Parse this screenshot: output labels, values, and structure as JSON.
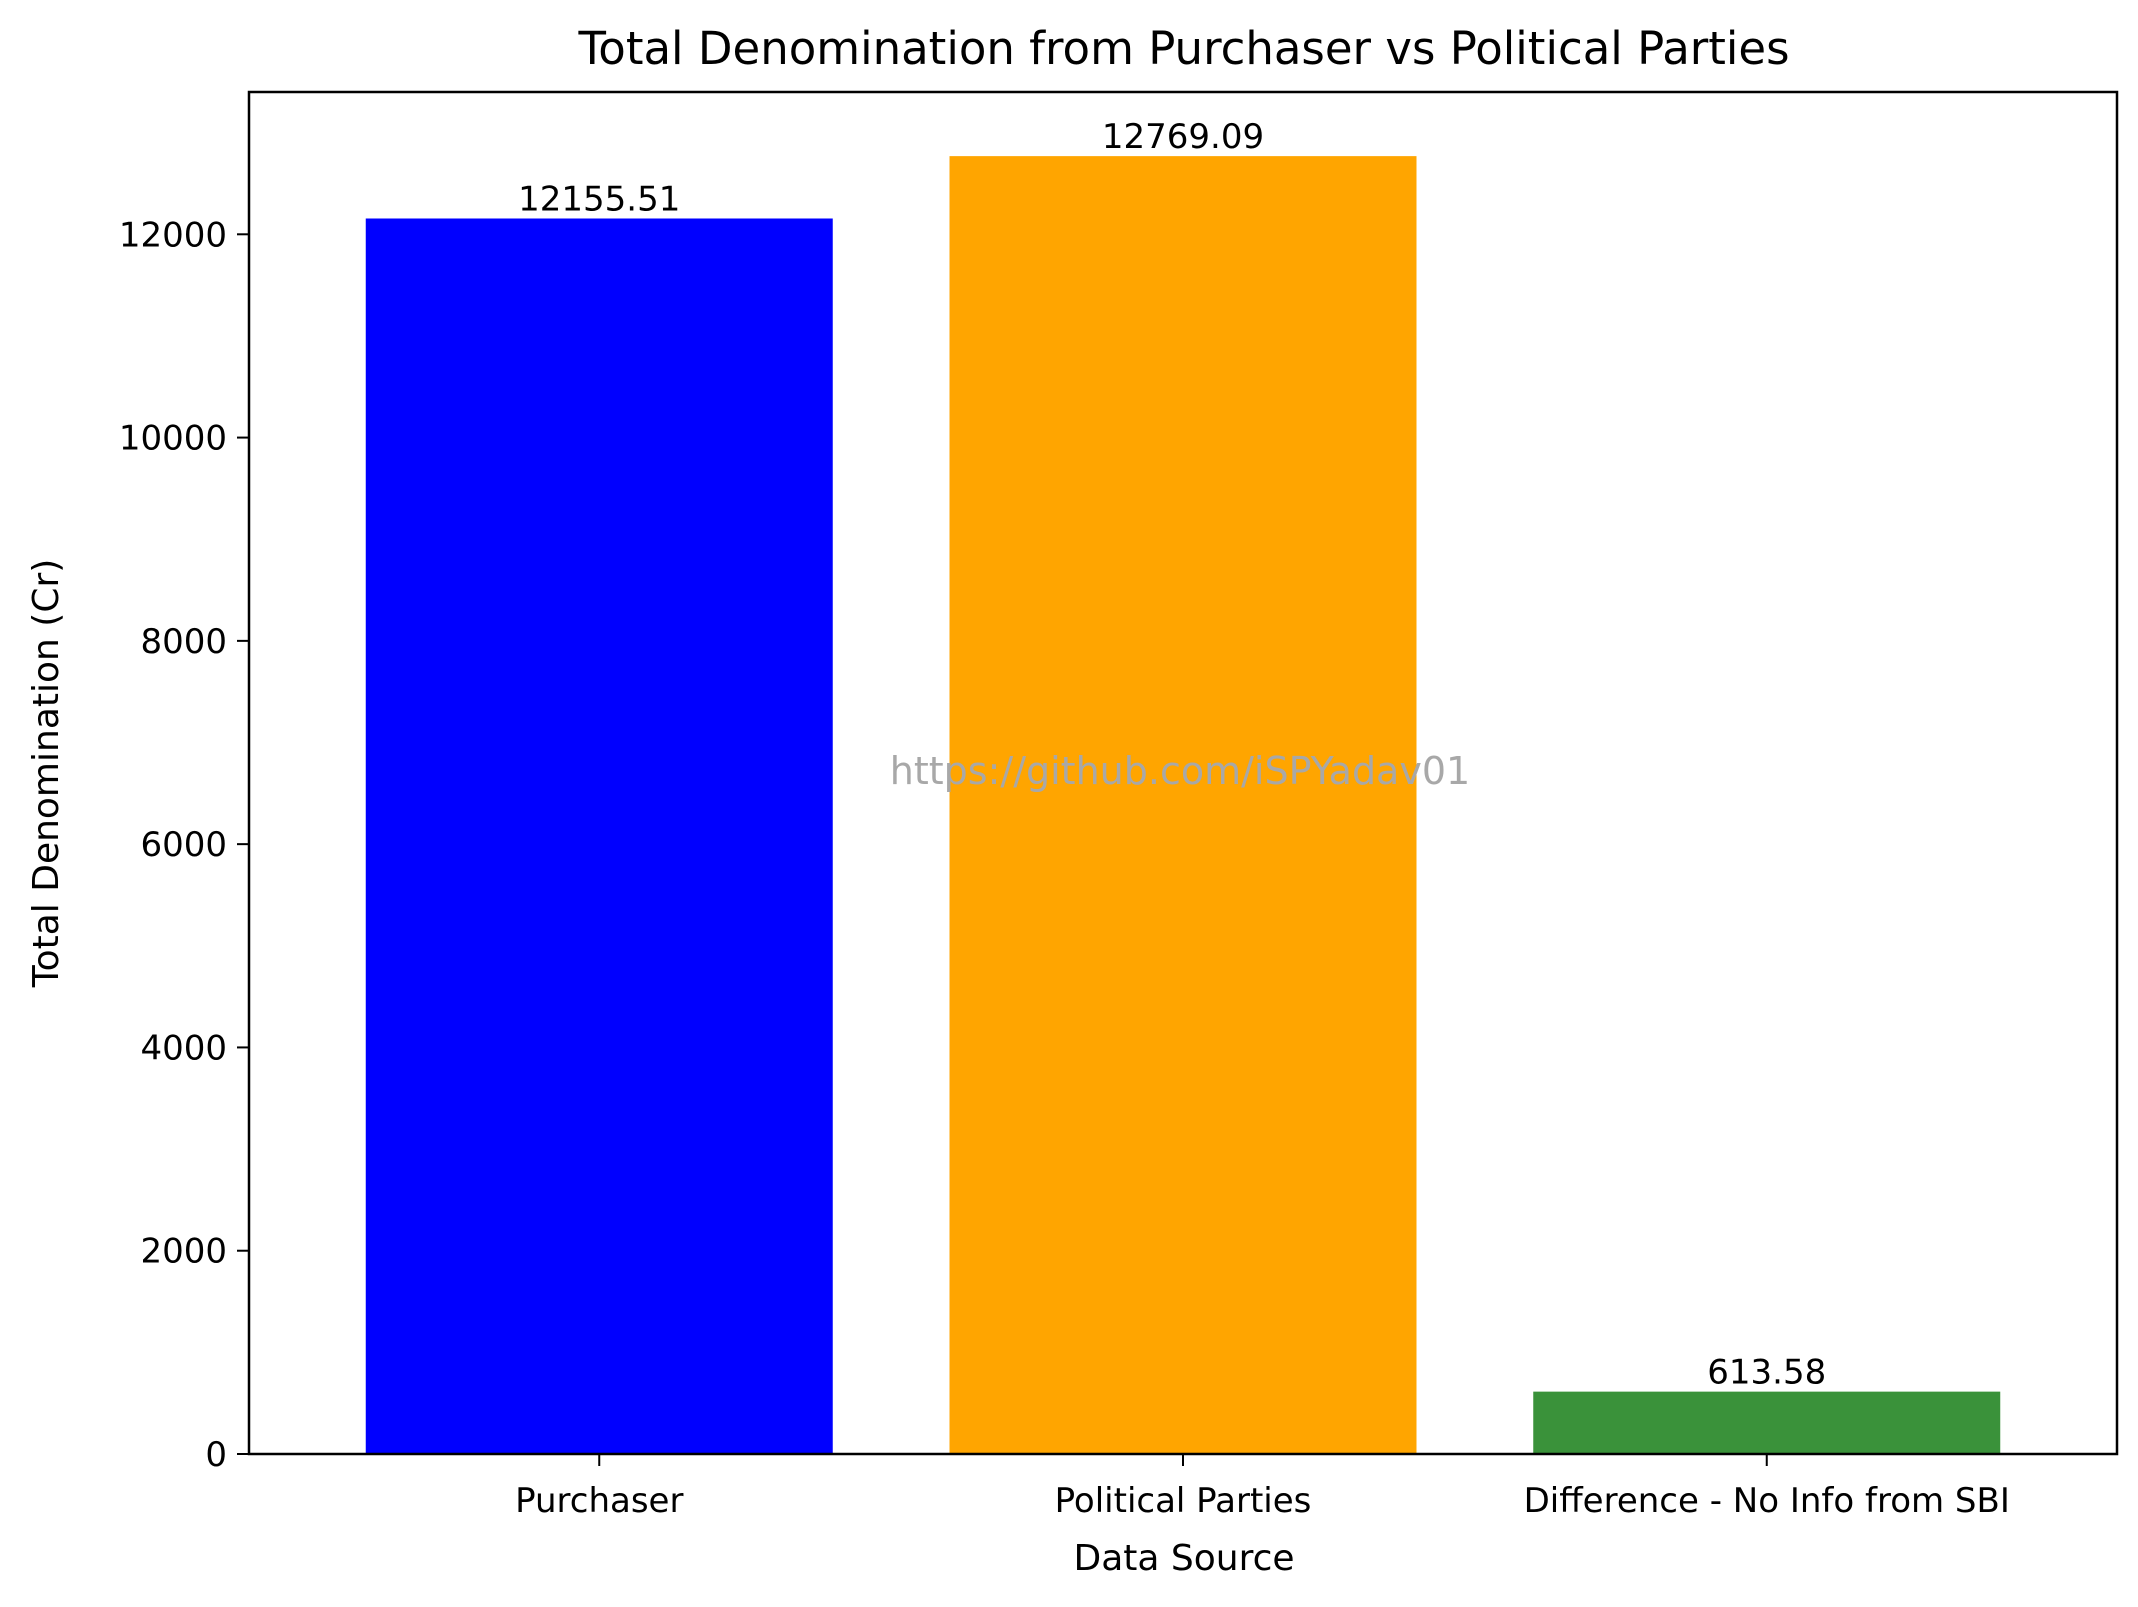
{
  "chart_data": {
    "type": "bar",
    "title": "Total Denomination from Purchaser vs Political Parties",
    "xlabel": "Data Source",
    "ylabel": "Total Denomination (Cr)",
    "categories": [
      "Purchaser",
      "Political Parties",
      "Difference - No Info from SBI"
    ],
    "values": [
      12155.51,
      12769.09,
      613.58
    ],
    "data_labels": [
      "12155.51",
      "12769.09",
      "613.58"
    ],
    "colors": [
      "#0000ff",
      "#ffa500",
      "#3a923a"
    ],
    "ylim": [
      0,
      13400
    ],
    "yticks": [
      0,
      2000,
      4000,
      6000,
      8000,
      10000,
      12000
    ],
    "grid": false,
    "legend": "none"
  },
  "watermark": "https://github.com/iSPYadav01"
}
